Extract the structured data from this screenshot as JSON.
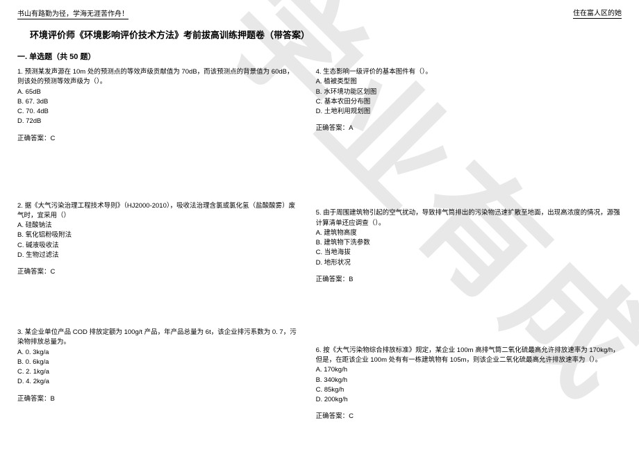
{
  "watermark": "学业有成",
  "header_left": "书山有路勤为径，学海无涯苦作舟！",
  "header_right": "住在富人区的她",
  "title": "环境评价师《环境影响评价技术方法》考前拔高训练押题卷（带答案）",
  "section_header": "一. 单选题（共 50 题）",
  "questions": [
    {
      "number": "1.",
      "text": "预测某发声源在 10m 处的预测点的等效声级贡献值为 70dB，而该预测点的背景值为 60dB，则该处的预测等效声级为（）。",
      "options": [
        "A. 65dB",
        "B. 67. 3dB",
        "C. 70. 4dB",
        "D. 72dB"
      ],
      "answer": "正确答案：C"
    },
    {
      "number": "2.",
      "text": "据《大气污染治理工程技术导则》（HJ2000-2010），吸收法治理含氯或氯化氢（盐酸酸雾）废气时，宜采用（）",
      "options": [
        "A. 硅酸钠法",
        "B. 氧化铝粉吸附法",
        "C. 碱液吸收法",
        "D. 生物过滤法"
      ],
      "answer": "正确答案：C"
    },
    {
      "number": "3.",
      "text": "某企业单位产品 COD 排放定额为 100g/t 产品，年产品总量为 6t，该企业排污系数为 0. 7，污染物排放总量为。",
      "options": [
        "A. 0. 3kg/a",
        "B. 0. 6kg/a",
        "C. 2. 1kg/a",
        "D. 4. 2kg/a"
      ],
      "answer": "正确答案：B"
    },
    {
      "number": "4.",
      "text": "生态影响一级评价的基本图件有（）。",
      "options": [
        "A. 植被类型图",
        "B. 水环境功能区划图",
        "C. 基本农田分布图",
        "D. 土地利用规划图"
      ],
      "answer": "正确答案：A"
    },
    {
      "number": "5.",
      "text": "由于周围建筑物引起的空气扰动，导致排气筒排出的污染物迅速扩散至地面，出现高浓度的情况，源强计算清单还应调查（）。",
      "options": [
        "A. 建筑物高度",
        "B. 建筑物下洗参数",
        "C. 当地海拔",
        "D. 地形状况"
      ],
      "answer": "正确答案：B"
    },
    {
      "number": "6.",
      "text": "按《大气污染物综合排放标准》规定，某企业 100m 高排气筒二氧化硫最高允许排放速率为 170kg/h，但是，在距该企业 100m 处有有一栋建筑物有 105m，则该企业二氧化硫最高允许排放速率为（）。",
      "options": [
        "A. 170kg/h",
        "B. 340kg/h",
        "C. 85kg/h",
        "D. 200kg/h"
      ],
      "answer": "正确答案：C"
    }
  ]
}
